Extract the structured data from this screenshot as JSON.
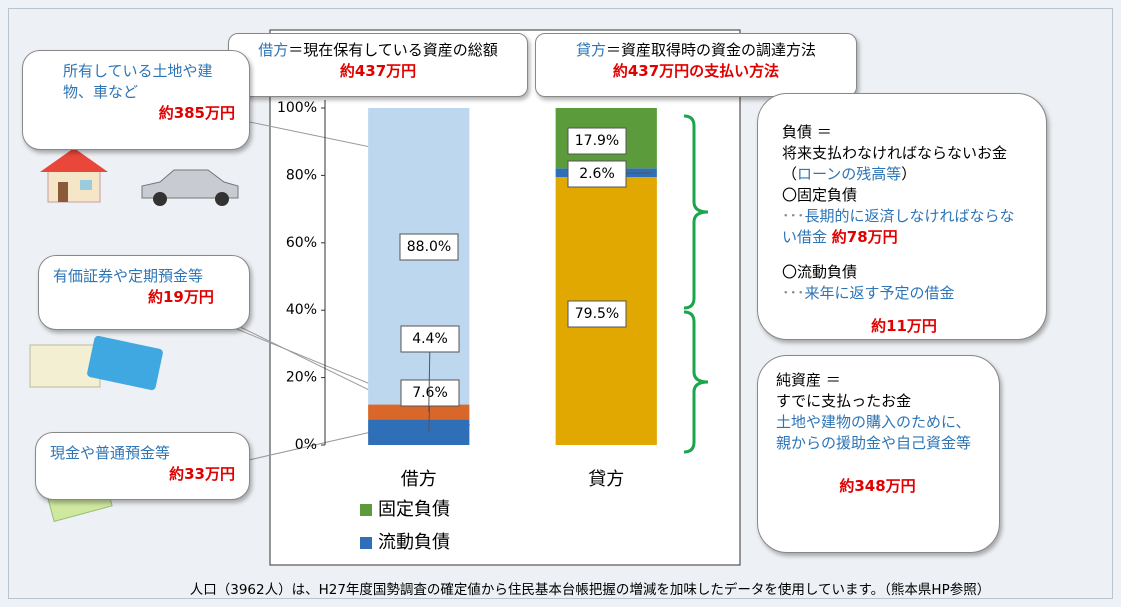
{
  "chart_data": {
    "type": "stacked_bar",
    "categories": [
      "借方",
      "貸方"
    ],
    "series": [
      {
        "color": "#2e6fb7",
        "values": [
          7.6,
          null
        ],
        "value_labels": [
          "7.6%",
          null
        ]
      },
      {
        "color": "#d9672a",
        "values": [
          4.4,
          null
        ],
        "value_labels": [
          "4.4%",
          null
        ]
      },
      {
        "color": "#bdd7ee",
        "values": [
          88.0,
          null
        ],
        "value_labels": [
          "88.0%",
          null
        ]
      },
      {
        "color": "#e0a800",
        "values": [
          null,
          79.5
        ],
        "value_labels": [
          null,
          "79.5%"
        ]
      },
      {
        "name": "流動負債",
        "color": "#2e6fb7",
        "values": [
          null,
          2.6
        ],
        "value_labels": [
          null,
          "2.6%"
        ]
      },
      {
        "name": "固定負債",
        "color": "#5b9b3c",
        "values": [
          null,
          17.9
        ],
        "value_labels": [
          null,
          "17.9%"
        ]
      }
    ],
    "ylim": [
      0,
      100
    ],
    "yticks": [
      {
        "value": 0,
        "label": "0%"
      },
      {
        "value": 20,
        "label": "20%"
      },
      {
        "value": 40,
        "label": "40%"
      },
      {
        "value": 60,
        "label": "60%"
      },
      {
        "value": 80,
        "label": "80%"
      },
      {
        "value": 100,
        "label": "100%"
      }
    ],
    "annotations": {
      "debit_header": {
        "term": "借方",
        "rest": "＝現在保有している資産の総額",
        "amount": "約437万円"
      },
      "credit_header": {
        "term": "貸方",
        "rest": "＝資産取得時の資金の調達方法",
        "amount": "約437万円の支払い方法"
      },
      "assets": [
        {
          "text": "所有している土地や建物、車など",
          "amount": "約385万円"
        },
        {
          "text": "有価証券や定期預金等",
          "amount": "約19万円"
        },
        {
          "text": "現金や普通預金等",
          "amount": "約33万円"
        }
      ],
      "liabilities": {
        "heading": "負債 ＝",
        "def_a": "将来支払わなければならないお金（",
        "def_b": "ローンの残高等",
        "def_c": "）",
        "fixed": "〇固定負債",
        "fixed_dots": "･･･",
        "fixed_text": "長期的に返済しなければならない借金",
        "fixed_amount": "約78万円",
        "current": "〇流動負債",
        "current_dots": "･･･",
        "current_text": "来年に返す予定の借金",
        "current_amount": "約11万円"
      },
      "equity": {
        "heading": "純資産 ＝",
        "def": "すでに支払ったお金",
        "detail": "土地や建物の購入のために、親からの援助金や自己資金等",
        "amount": "約348万円"
      },
      "footnote": "人口（3962人）は、H27年度国勢調査の確定値から住民基本台帳把握の増減を加味したデータを使用しています。（熊本県HP参照）"
    }
  }
}
